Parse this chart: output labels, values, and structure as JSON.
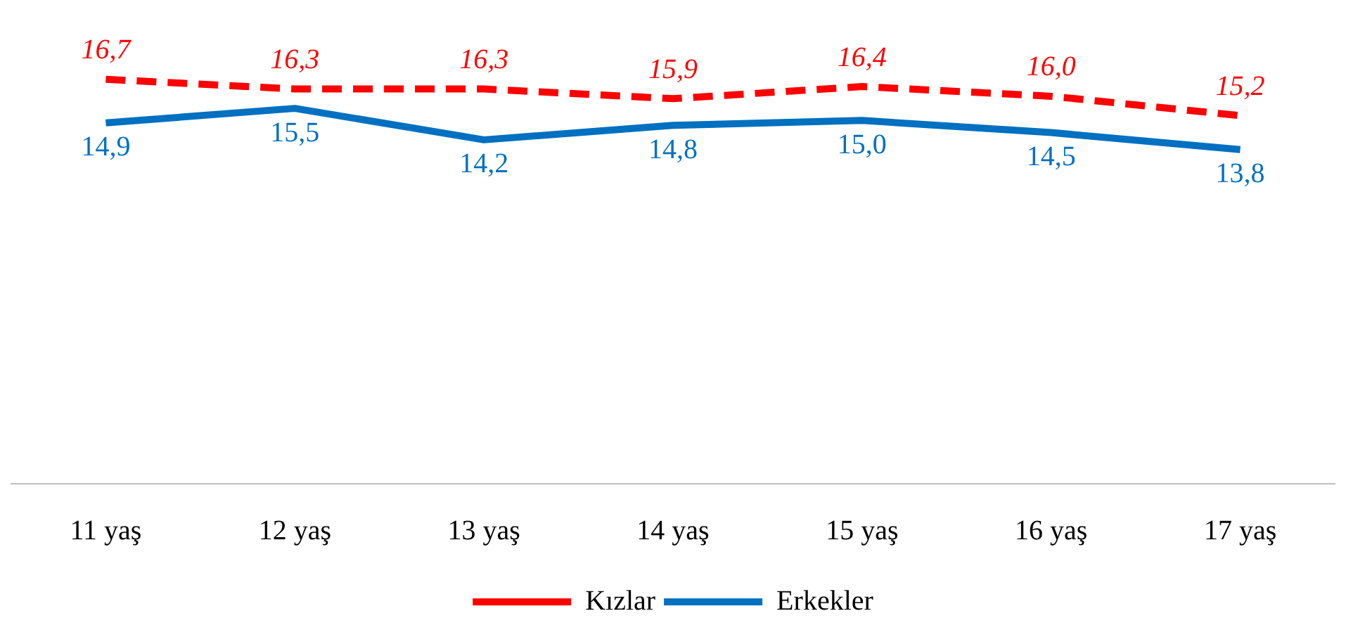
{
  "chart_data": {
    "type": "line",
    "categories": [
      "11 yaş",
      "12 yaş",
      "13 yaş",
      "14 yaş",
      "15 yaş",
      "16 yaş",
      "17 yaş"
    ],
    "series": [
      {
        "name": "Kızlar",
        "color": "#ff0000",
        "line_style": "dashed",
        "values": [
          16.7,
          16.3,
          16.3,
          15.9,
          16.4,
          16.0,
          15.2
        ],
        "value_labels": [
          "16,7",
          "16,3",
          "16,3",
          "15,9",
          "16,4",
          "16,0",
          "15,2"
        ]
      },
      {
        "name": "Erkekler",
        "color": "#0070c0",
        "line_style": "solid",
        "values": [
          14.9,
          15.5,
          14.2,
          14.8,
          15.0,
          14.5,
          13.8
        ],
        "value_labels": [
          "14,9",
          "15,5",
          "14,2",
          "14,8",
          "15,0",
          "14,5",
          "13,8"
        ]
      }
    ],
    "tick_labels": "x",
    "grid": false,
    "legend": "bottom",
    "marker": "none"
  }
}
